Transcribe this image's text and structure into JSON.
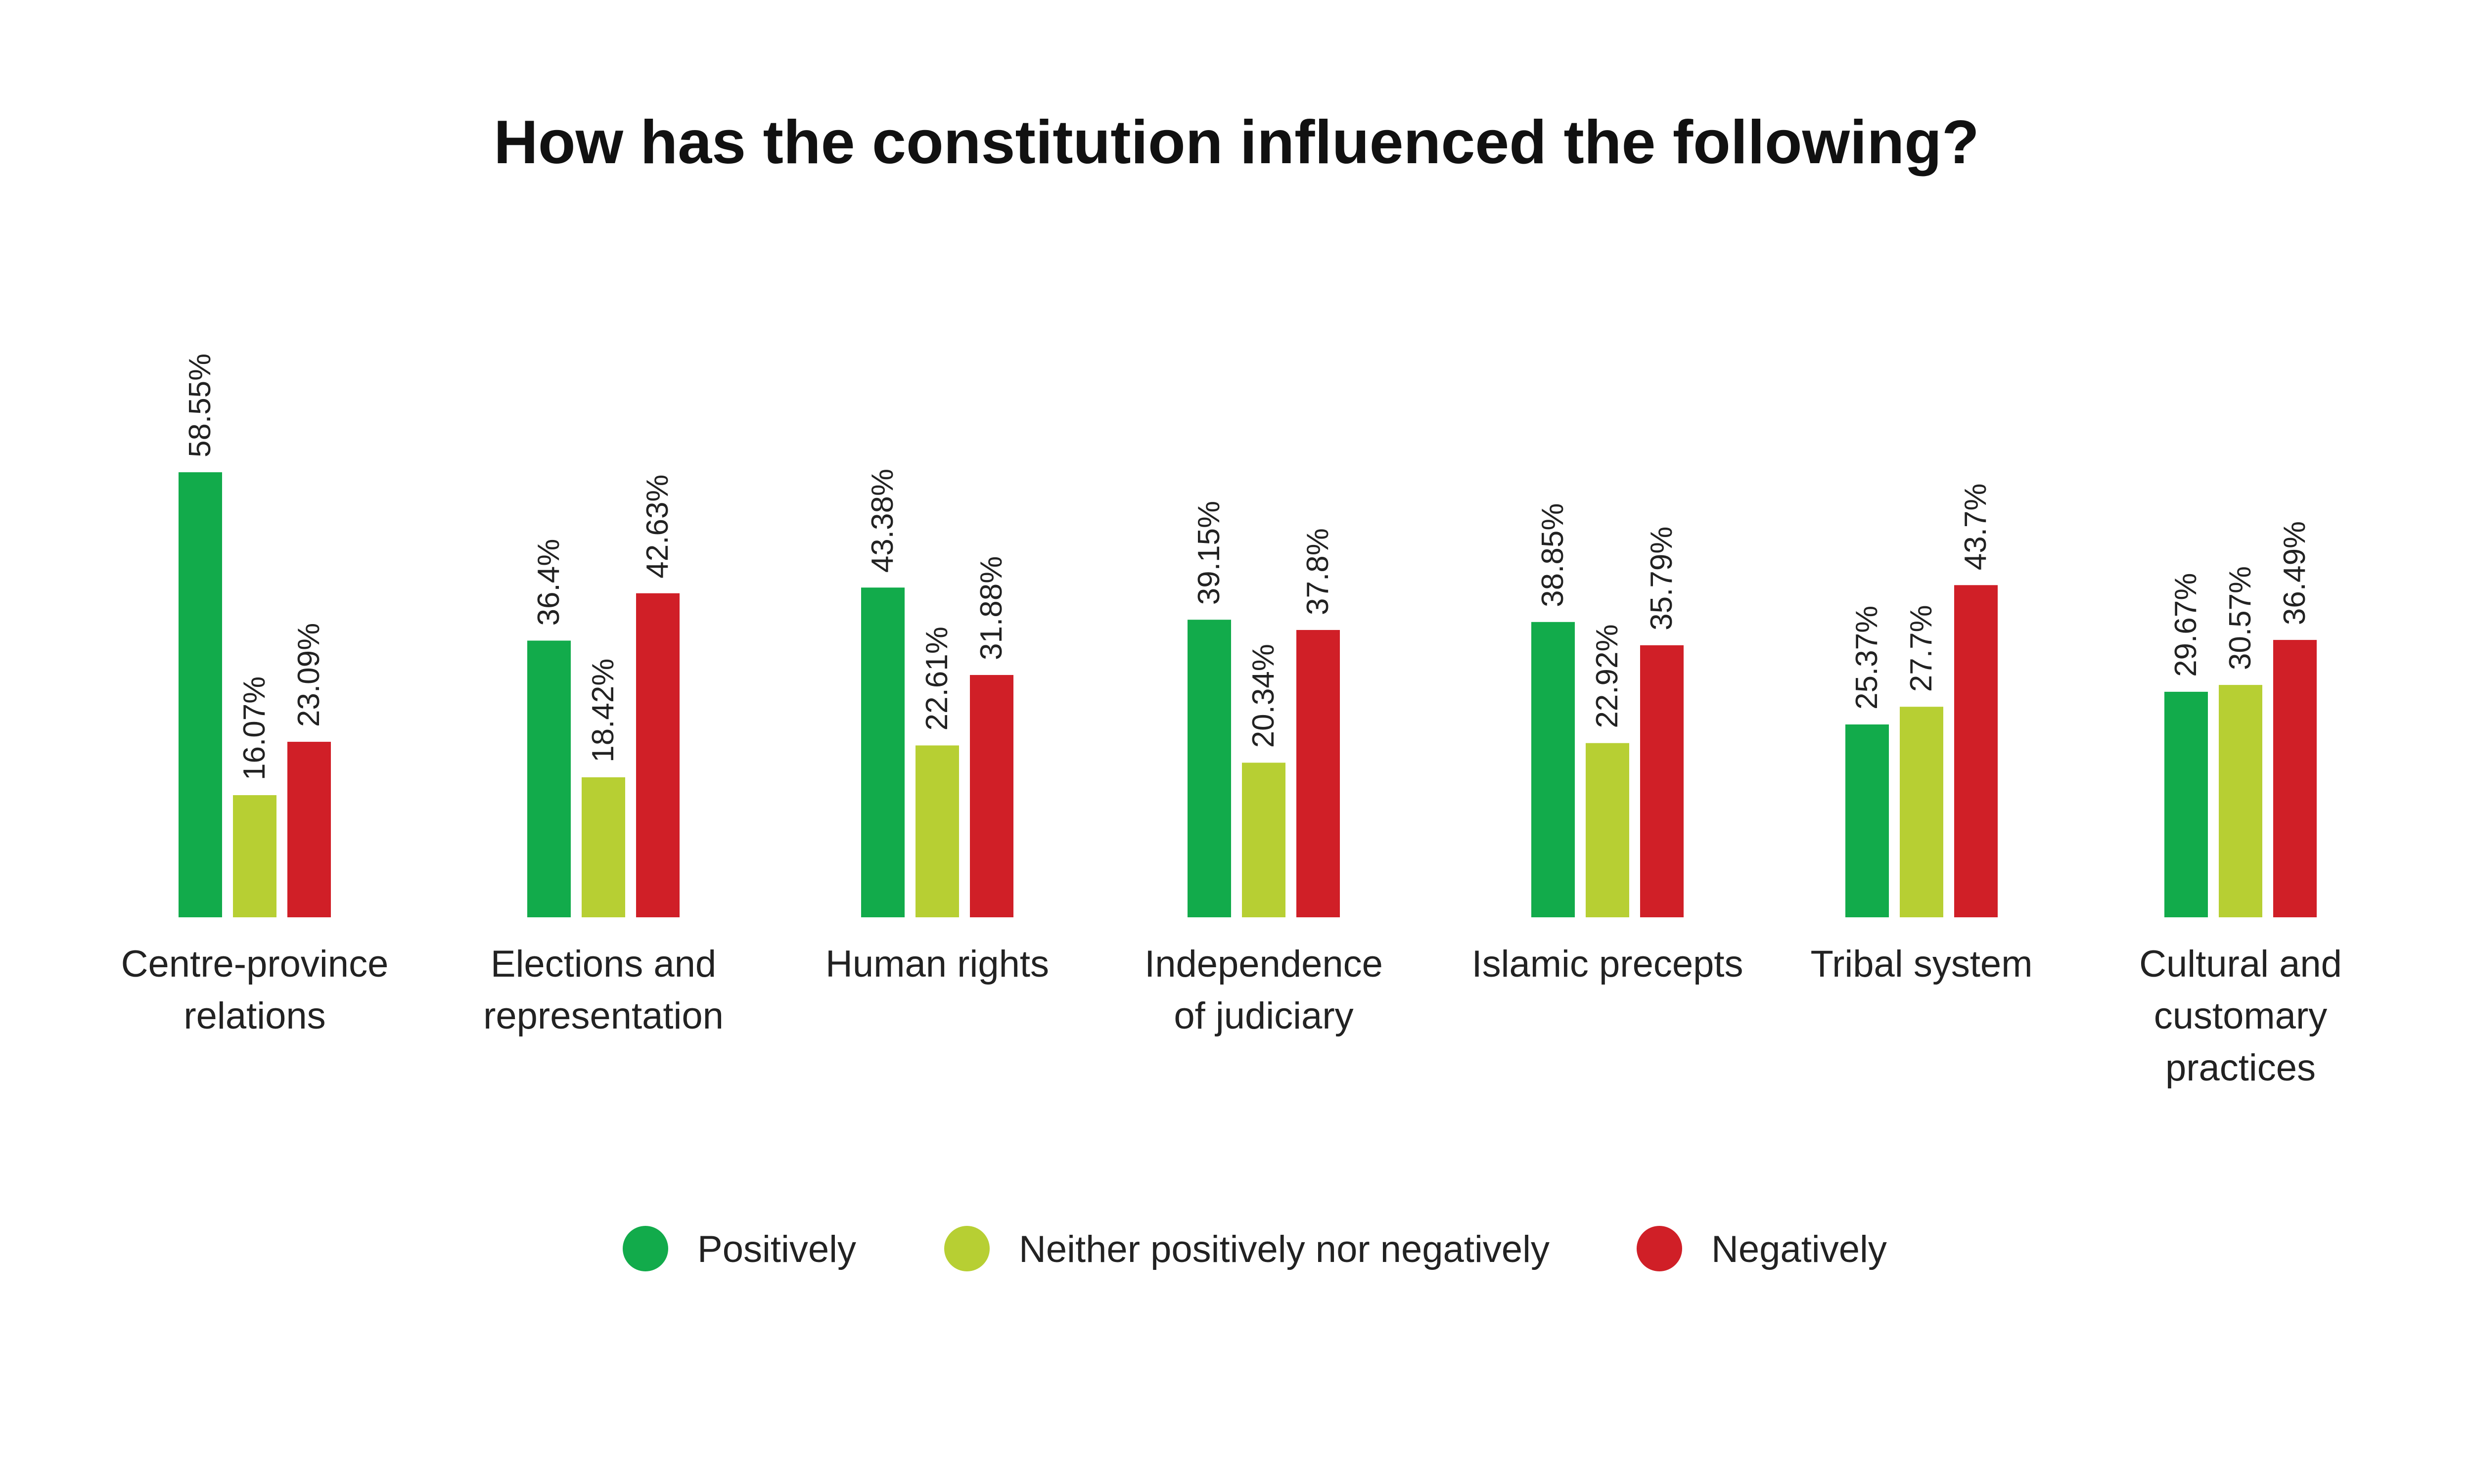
{
  "chart_data": {
    "type": "bar",
    "title": "How has the constitution influenced the following?",
    "categories": [
      [
        "Centre-province",
        "relations"
      ],
      [
        "Elections and",
        "representation"
      ],
      [
        "Human rights"
      ],
      [
        "Independence",
        "of judiciary"
      ],
      [
        "Islamic precepts"
      ],
      [
        "Tribal system"
      ],
      [
        "Cultural and",
        "customary",
        "practices"
      ]
    ],
    "series": [
      {
        "name": "Positively",
        "color": "#12ab4b",
        "values": [
          58.55,
          36.4,
          43.38,
          39.15,
          38.85,
          25.37,
          29.67
        ],
        "labels": [
          "58.55%",
          "36.4%",
          "43.38%",
          "39.15%",
          "38.85%",
          "25.37%",
          "29.67%"
        ]
      },
      {
        "name": "Neither positively nor negatively",
        "color": "#b7cf33",
        "values": [
          16.07,
          18.42,
          22.61,
          20.34,
          22.92,
          27.7,
          30.57
        ],
        "labels": [
          "16.07%",
          "18.42%",
          "22.61%",
          "20.34%",
          "22.92%",
          "27.7%",
          "30.57%"
        ]
      },
      {
        "name": "Negatively",
        "color": "#d01f27",
        "values": [
          23.09,
          42.63,
          31.88,
          37.8,
          35.79,
          43.7,
          36.49
        ],
        "labels": [
          "23.09%",
          "42.63%",
          "31.88%",
          "37.8%",
          "35.79%",
          "43.7%",
          "36.49%"
        ]
      }
    ],
    "ylim": [
      0,
      60
    ],
    "xlabel": "",
    "ylabel": "",
    "grid": false,
    "legend": "bottom"
  }
}
